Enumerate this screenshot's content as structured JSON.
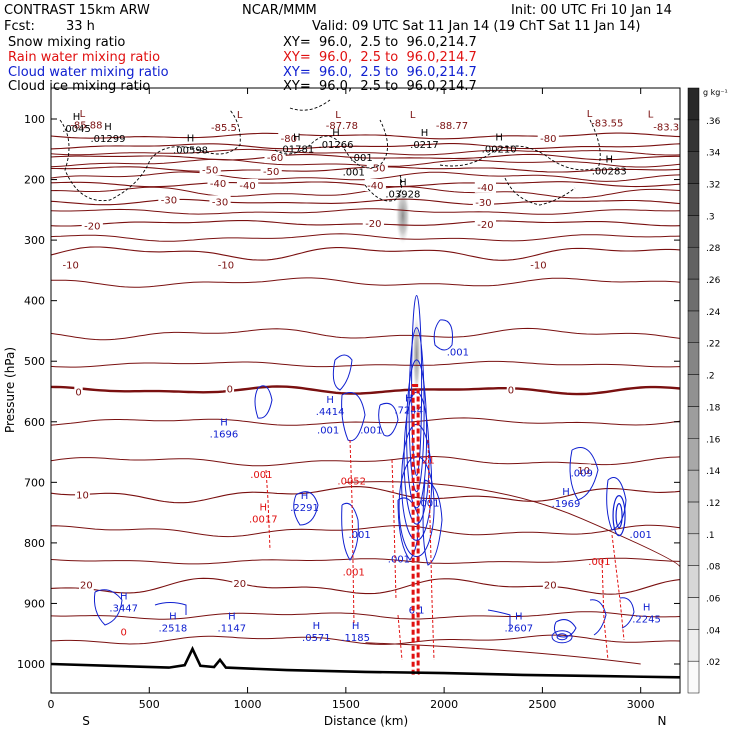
{
  "header": {
    "left_title": "CONTRAST 15km ARW",
    "center_title": "NCAR/MMM",
    "init": "Init: 00 UTC Fri 10 Jan 14",
    "fcst_label": "Fcst:",
    "fcst_value": "33 h",
    "valid": "Valid: 09 UTC Sat 11 Jan 14 (19 ChT Sat 11 Jan 14)",
    "fields": [
      {
        "name": "Snow mixing ratio",
        "xy": "XY=  96.0,  2.5 to  96.0,214.7",
        "color": "#000000"
      },
      {
        "name": "Rain water mixing ratio",
        "xy": "XY=  96.0,  2.5 to  96.0,214.7",
        "color": "#e01010"
      },
      {
        "name": "Cloud water mixing ratio",
        "xy": "XY=  96.0,  2.5 to  96.0,214.7",
        "color": "#1020d0"
      },
      {
        "name": "Cloud ice mixing ratio",
        "xy": "XY=  96.0,  2.5 to  96.0,214.7",
        "color": "#000000"
      }
    ]
  },
  "chart_data": {
    "type": "heatmap",
    "title": "",
    "xlabel": "Distance (km)",
    "ylabel": "Pressure (hPa)",
    "xlim": [
      0,
      3200
    ],
    "ylim": [
      1050,
      50
    ],
    "x_ticks": [
      0,
      500,
      1000,
      1500,
      2000,
      2500,
      3000
    ],
    "y_ticks": [
      100,
      200,
      300,
      400,
      500,
      600,
      700,
      800,
      900,
      1000
    ],
    "x_end_labels": {
      "left": "S",
      "right": "N"
    },
    "colorbar": {
      "unit": "g kg⁻¹",
      "ticks": [
        ".02",
        ".04",
        ".06",
        ".08",
        ".1",
        ".12",
        ".14",
        ".16",
        ".18",
        ".2",
        ".22",
        ".24",
        ".26",
        ".28",
        ".3",
        ".32",
        ".34",
        ".36"
      ],
      "range": [
        0,
        0.38
      ]
    },
    "temperature_contours": [
      {
        "value": -80,
        "pressure": 128
      },
      {
        "value": -70,
        "pressure": 145
      },
      {
        "value": -60,
        "pressure": 163
      },
      {
        "value": -50,
        "pressure": 183
      },
      {
        "value": -40,
        "pressure": 207
      },
      {
        "value": -30,
        "pressure": 237
      },
      {
        "value": -20,
        "pressure": 272
      },
      {
        "value": -10,
        "pressure": 321
      },
      {
        "value": 0,
        "pressure": 548
      },
      {
        "value": 10,
        "pressure": 720
      },
      {
        "value": 20,
        "pressure": 872
      }
    ],
    "temperature_labels": [
      {
        "text": "-85.5",
        "x": 880,
        "p": 113
      },
      {
        "text": "-87.78",
        "x": 1480,
        "p": 110
      },
      {
        "text": "-88.77",
        "x": 2040,
        "p": 110
      },
      {
        "text": "-83.55",
        "x": 2830,
        "p": 106
      },
      {
        "text": "-83.3",
        "x": 3130,
        "p": 112
      },
      {
        "text": "-85.88",
        "x": 180,
        "p": 109
      },
      {
        "text": "-80",
        "x": 1210,
        "p": 131
      },
      {
        "text": "-80",
        "x": 2530,
        "p": 131
      },
      {
        "text": "-60",
        "x": 1140,
        "p": 163
      },
      {
        "text": "-50",
        "x": 810,
        "p": 183
      },
      {
        "text": "-50",
        "x": 1120,
        "p": 186
      },
      {
        "text": "-50",
        "x": 1660,
        "p": 180
      },
      {
        "text": "-40",
        "x": 850,
        "p": 206
      },
      {
        "text": "-40",
        "x": 1000,
        "p": 209
      },
      {
        "text": "-40",
        "x": 1650,
        "p": 209
      },
      {
        "text": "-40",
        "x": 2210,
        "p": 212
      },
      {
        "text": "-30",
        "x": 600,
        "p": 233
      },
      {
        "text": "-30",
        "x": 860,
        "p": 236
      },
      {
        "text": "-30",
        "x": 2200,
        "p": 237
      },
      {
        "text": "-20",
        "x": 210,
        "p": 276
      },
      {
        "text": "-20",
        "x": 1640,
        "p": 272
      },
      {
        "text": "-20",
        "x": 2210,
        "p": 273
      },
      {
        "text": "-10",
        "x": 100,
        "p": 340
      },
      {
        "text": "-10",
        "x": 890,
        "p": 340
      },
      {
        "text": "-10",
        "x": 2480,
        "p": 340
      },
      {
        "text": "0",
        "x": 140,
        "p": 550
      },
      {
        "text": "0",
        "x": 910,
        "p": 545
      },
      {
        "text": "0",
        "x": 2340,
        "p": 547
      },
      {
        "text": "10",
        "x": 160,
        "p": 720
      },
      {
        "text": "10",
        "x": 2710,
        "p": 680
      },
      {
        "text": "20",
        "x": 180,
        "p": 869
      },
      {
        "text": "20",
        "x": 960,
        "p": 866
      },
      {
        "text": "20",
        "x": 2540,
        "p": 869
      }
    ],
    "snow_labels": [
      {
        "text": ".0045",
        "x": 130,
        "p": 115,
        "kind": "H"
      },
      {
        "text": ".01299",
        "x": 290,
        "p": 131,
        "kind": "H"
      },
      {
        "text": ".00598",
        "x": 710,
        "p": 150,
        "kind": "H"
      },
      {
        "text": ".01781",
        "x": 1250,
        "p": 149,
        "kind": "H"
      },
      {
        "text": ".01266",
        "x": 1450,
        "p": 141,
        "kind": "H"
      },
      {
        "text": ".0217",
        "x": 1900,
        "p": 141,
        "kind": "H"
      },
      {
        "text": ".00210",
        "x": 2280,
        "p": 149,
        "kind": "H"
      },
      {
        "text": ".00283",
        "x": 2840,
        "p": 185,
        "kind": "H"
      },
      {
        "text": ".03928",
        "x": 1790,
        "p": 223,
        "kind": "H"
      },
      {
        "text": ".001",
        "x": 1580,
        "p": 163,
        "kind": "c"
      },
      {
        "text": ".001",
        "x": 1540,
        "p": 187,
        "kind": "c"
      }
    ],
    "snow_lows": [
      {
        "x": 160,
        "p": 90
      },
      {
        "x": 960,
        "p": 92
      },
      {
        "x": 1460,
        "p": 92
      },
      {
        "x": 1840,
        "p": 92
      },
      {
        "x": 2740,
        "p": 90
      },
      {
        "x": 3050,
        "p": 91
      }
    ],
    "cloud_water_labels": [
      {
        "text": ".001",
        "x": 2070,
        "p": 484,
        "kind": "c"
      },
      {
        "text": ".4414",
        "x": 1420,
        "p": 582,
        "kind": "H"
      },
      {
        "text": ".7244",
        "x": 1820,
        "p": 580,
        "kind": "H"
      },
      {
        "text": ".001",
        "x": 1410,
        "p": 613,
        "kind": "c"
      },
      {
        "text": ".001",
        "x": 1630,
        "p": 613,
        "kind": "c"
      },
      {
        "text": ".1696",
        "x": 880,
        "p": 619,
        "kind": "H"
      },
      {
        "text": ".2291",
        "x": 1290,
        "p": 741,
        "kind": "H"
      },
      {
        "text": ".1969",
        "x": 2620,
        "p": 734,
        "kind": "H"
      },
      {
        "text": ".009",
        "x": 2700,
        "p": 684,
        "kind": "c"
      },
      {
        "text": ".001",
        "x": 1570,
        "p": 785,
        "kind": "c"
      },
      {
        "text": ".001",
        "x": 1770,
        "p": 826,
        "kind": "c"
      },
      {
        "text": ".001",
        "x": 3000,
        "p": 785,
        "kind": "c"
      },
      {
        "text": ".001",
        "x": 1920,
        "p": 733,
        "kind": "c"
      },
      {
        "text": ".3447",
        "x": 370,
        "p": 907,
        "kind": "H"
      },
      {
        "text": ".2518",
        "x": 620,
        "p": 940,
        "kind": "H"
      },
      {
        "text": ".1147",
        "x": 920,
        "p": 940,
        "kind": "H"
      },
      {
        "text": ".0571",
        "x": 1350,
        "p": 955,
        "kind": "H"
      },
      {
        "text": ".1185",
        "x": 1550,
        "p": 955,
        "kind": "H"
      },
      {
        "text": ".2607",
        "x": 2380,
        "p": 940,
        "kind": "H"
      },
      {
        "text": ".2245",
        "x": 3030,
        "p": 925,
        "kind": "H"
      },
      {
        "text": "6.1",
        "x": 1860,
        "p": 910,
        "kind": "c"
      }
    ],
    "rain_labels": [
      {
        "text": ".001",
        "x": 1070,
        "p": 686,
        "kind": "c"
      },
      {
        "text": ".0017",
        "x": 1080,
        "p": 760,
        "kind": "H"
      },
      {
        "text": ".0052",
        "x": 1530,
        "p": 697,
        "kind": "c"
      },
      {
        "text": ".001",
        "x": 1540,
        "p": 847,
        "kind": "c"
      },
      {
        "text": ".001",
        "x": 2790,
        "p": 830,
        "kind": "c"
      },
      {
        "text": "21",
        "x": 1920,
        "p": 662,
        "kind": "c"
      },
      {
        "text": "0",
        "x": 370,
        "p": 946,
        "kind": "c"
      }
    ],
    "cloud_ice_max": {
      "x": 1790,
      "p": 260,
      "value": 0.12
    },
    "terrain": [
      {
        "x": 0,
        "p": 1000
      },
      {
        "x": 300,
        "p": 1003
      },
      {
        "x": 600,
        "p": 1006
      },
      {
        "x": 680,
        "p": 1002
      },
      {
        "x": 720,
        "p": 975
      },
      {
        "x": 760,
        "p": 1003
      },
      {
        "x": 830,
        "p": 1005
      },
      {
        "x": 860,
        "p": 993
      },
      {
        "x": 890,
        "p": 1006
      },
      {
        "x": 1200,
        "p": 1010
      },
      {
        "x": 1600,
        "p": 1013
      },
      {
        "x": 2000,
        "p": 1015
      },
      {
        "x": 2400,
        "p": 1018
      },
      {
        "x": 2800,
        "p": 1020
      },
      {
        "x": 3200,
        "p": 1022
      }
    ]
  }
}
